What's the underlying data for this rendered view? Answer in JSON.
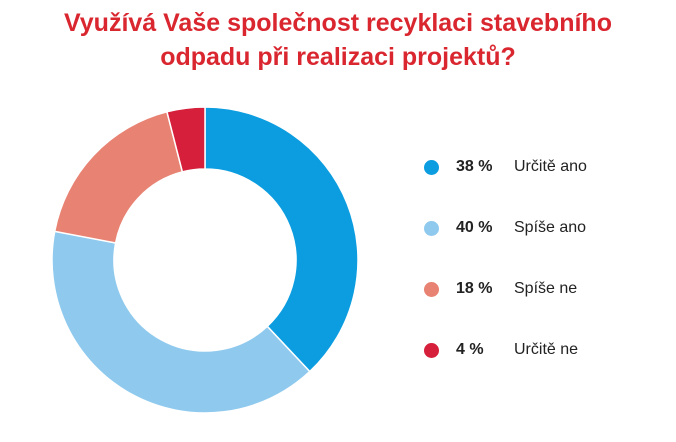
{
  "header": {
    "title_line1": "Využívá Vaše společnost recyklaci stavebního",
    "title_line2": "odpadu při realizaci projektů?"
  },
  "chart_data": {
    "type": "pie",
    "variant": "donut",
    "title": "Využívá Vaše společnost recyklaci stavebního odpadu při realizaci projektů?",
    "legend_position": "right",
    "series": [
      {
        "name": "",
        "slices": [
          {
            "label": "Určitě ano",
            "value": 38,
            "value_text": "38 %",
            "color": "#0b9de0"
          },
          {
            "label": "Spíše ano",
            "value": 40,
            "value_text": "40 %",
            "color": "#8fcaee"
          },
          {
            "label": "Spíše ne",
            "value": 18,
            "value_text": "18 %",
            "color": "#e88272"
          },
          {
            "label": "Určitě ne",
            "value": 4,
            "value_text": "4 %",
            "color": "#d61f3b"
          }
        ]
      }
    ]
  }
}
